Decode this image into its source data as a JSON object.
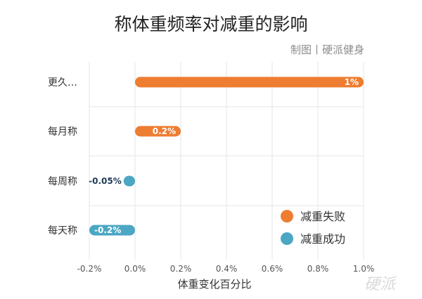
{
  "chart_data": {
    "type": "bar",
    "orientation": "horizontal",
    "title": "称体重频率对减重的影响",
    "credit": "制图丨硬派健身",
    "watermark": "硬派",
    "xlabel": "体重变化百分比",
    "categories": [
      "更久…",
      "每月称",
      "每周称",
      "每天称"
    ],
    "values": [
      1.0,
      0.2,
      -0.05,
      -0.2
    ],
    "value_labels": [
      "1%",
      "0.2%",
      "-0.05%",
      "-0.2%"
    ],
    "series_by_bar": [
      "减重失败",
      "减重失败",
      "减重成功",
      "减重成功"
    ],
    "xlim": [
      -0.2,
      1.0
    ],
    "xticks": [
      -0.2,
      0,
      0.2,
      0.4,
      0.6,
      0.8,
      1.0
    ],
    "xtick_labels": [
      "-0.2%",
      "0.0%",
      "0.2%",
      "0.4%",
      "0.6%",
      "0.8%",
      "1.0%"
    ],
    "grid": true,
    "legend_position": "bottom-right",
    "legend": [
      {
        "name": "减重失败",
        "color": "#ee7d31"
      },
      {
        "name": "减重成功",
        "color": "#4ba7c4"
      }
    ],
    "colors": {
      "failure": "#ee7d31",
      "success": "#4ba7c4",
      "grid": "#e6e6e6"
    }
  }
}
